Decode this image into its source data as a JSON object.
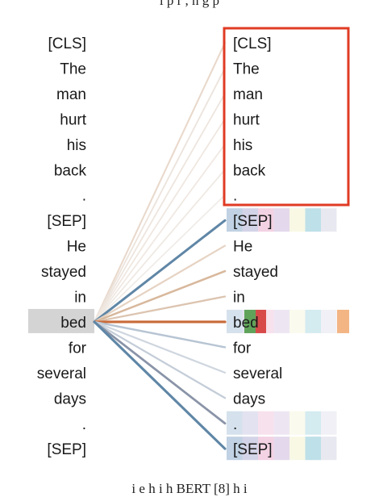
{
  "caption_top": "i   p  r        ,        h        g     p          ",
  "caption_bottom": "    i          e           h     i     h     BERT [8]   h     i",
  "left_tokens": [
    "[CLS]",
    "The",
    "man",
    "hurt",
    "his",
    "back",
    ".",
    "[SEP]",
    "He",
    "stayed",
    "in",
    "bed",
    "for",
    "several",
    "days",
    ".",
    "[SEP]"
  ],
  "right_tokens": [
    "[CLS]",
    "The",
    "man",
    "hurt",
    "his",
    "back",
    ".",
    "[SEP]",
    "He",
    "stayed",
    "in",
    "bed",
    "for",
    "several",
    "days",
    ".",
    "[SEP]"
  ],
  "selected_index": 11,
  "colors": {
    "selection": "#d4d4d4",
    "highlight_box": "#e03b24",
    "strong_orange": "#c96a3a",
    "steel_blue": "#5f86a6",
    "tan": "#c9a58a",
    "grey_blue": "#8a94a8"
  },
  "attention_lines": [
    {
      "to": 0,
      "color": "#e9d9cc",
      "weight": 0.45
    },
    {
      "to": 1,
      "color": "#ece4dd",
      "weight": 0.35
    },
    {
      "to": 2,
      "color": "#ede5de",
      "weight": 0.3
    },
    {
      "to": 3,
      "color": "#efe7e0",
      "weight": 0.3
    },
    {
      "to": 4,
      "color": "#f0e8e2",
      "weight": 0.28
    },
    {
      "to": 5,
      "color": "#efe9e3",
      "weight": 0.3
    },
    {
      "to": 6,
      "color": "#f0ebe7",
      "weight": 0.25
    },
    {
      "to": 7,
      "color": "#5f86a6",
      "weight": 0.9
    },
    {
      "to": 8,
      "color": "#e6d3c3",
      "weight": 0.5
    },
    {
      "to": 9,
      "color": "#d8b89c",
      "weight": 0.65
    },
    {
      "to": 10,
      "color": "#dcc4b0",
      "weight": 0.55
    },
    {
      "to": 11,
      "color": "#c96a3a",
      "weight": 1.0
    },
    {
      "to": 12,
      "color": "#b7c4d3",
      "weight": 0.6
    },
    {
      "to": 13,
      "color": "#cfd6df",
      "weight": 0.5
    },
    {
      "to": 14,
      "color": "#c4cdd8",
      "weight": 0.55
    },
    {
      "to": 15,
      "color": "#8a94a8",
      "weight": 0.8
    },
    {
      "to": 16,
      "color": "#5f86a6",
      "weight": 0.95
    }
  ],
  "heatmap_colors": [
    "#b9cde0",
    "#cfcfe6",
    "#f2cde0",
    "#e1d5ea",
    "#f7f7e2",
    "#b7dde6",
    "#e6e6f0"
  ],
  "heatmap_rows": [
    {
      "row": 7,
      "level": 0.9
    },
    {
      "row": 11,
      "level": 0.6
    },
    {
      "row": 15,
      "level": 0.6
    },
    {
      "row": 16,
      "level": 0.9
    }
  ]
}
